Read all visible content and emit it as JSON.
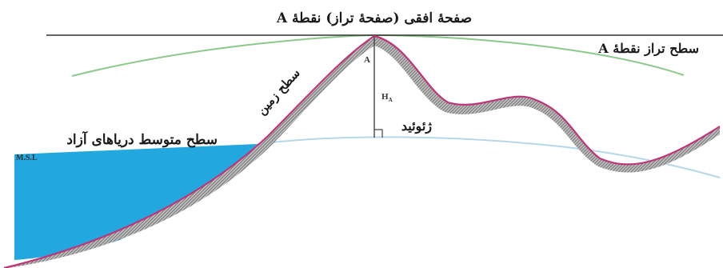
{
  "labels": {
    "horizontal_plane": "صفحهٔ افقی (صفحهٔ تراز) نقطهٔ A",
    "level_surface": "سطح تراز نقطهٔ A",
    "ground_surface": "سطح زمین",
    "mean_sea_level": "سطح متوسط دریاهای آزاد",
    "msl_abbrev": "M.S.L",
    "geoid": "ژئوئید",
    "point_a": "A",
    "height_symbol": "H",
    "height_subscript": "A"
  },
  "colors": {
    "horizontal_line": "#333333",
    "level_curve": "#8cc98a",
    "sea": "#22a8de",
    "geoid_curve": "#b6d7ea",
    "ground_line": "#c0357a",
    "terrain_hatch": "#8a8a8a",
    "text": "#1a1a1a"
  }
}
